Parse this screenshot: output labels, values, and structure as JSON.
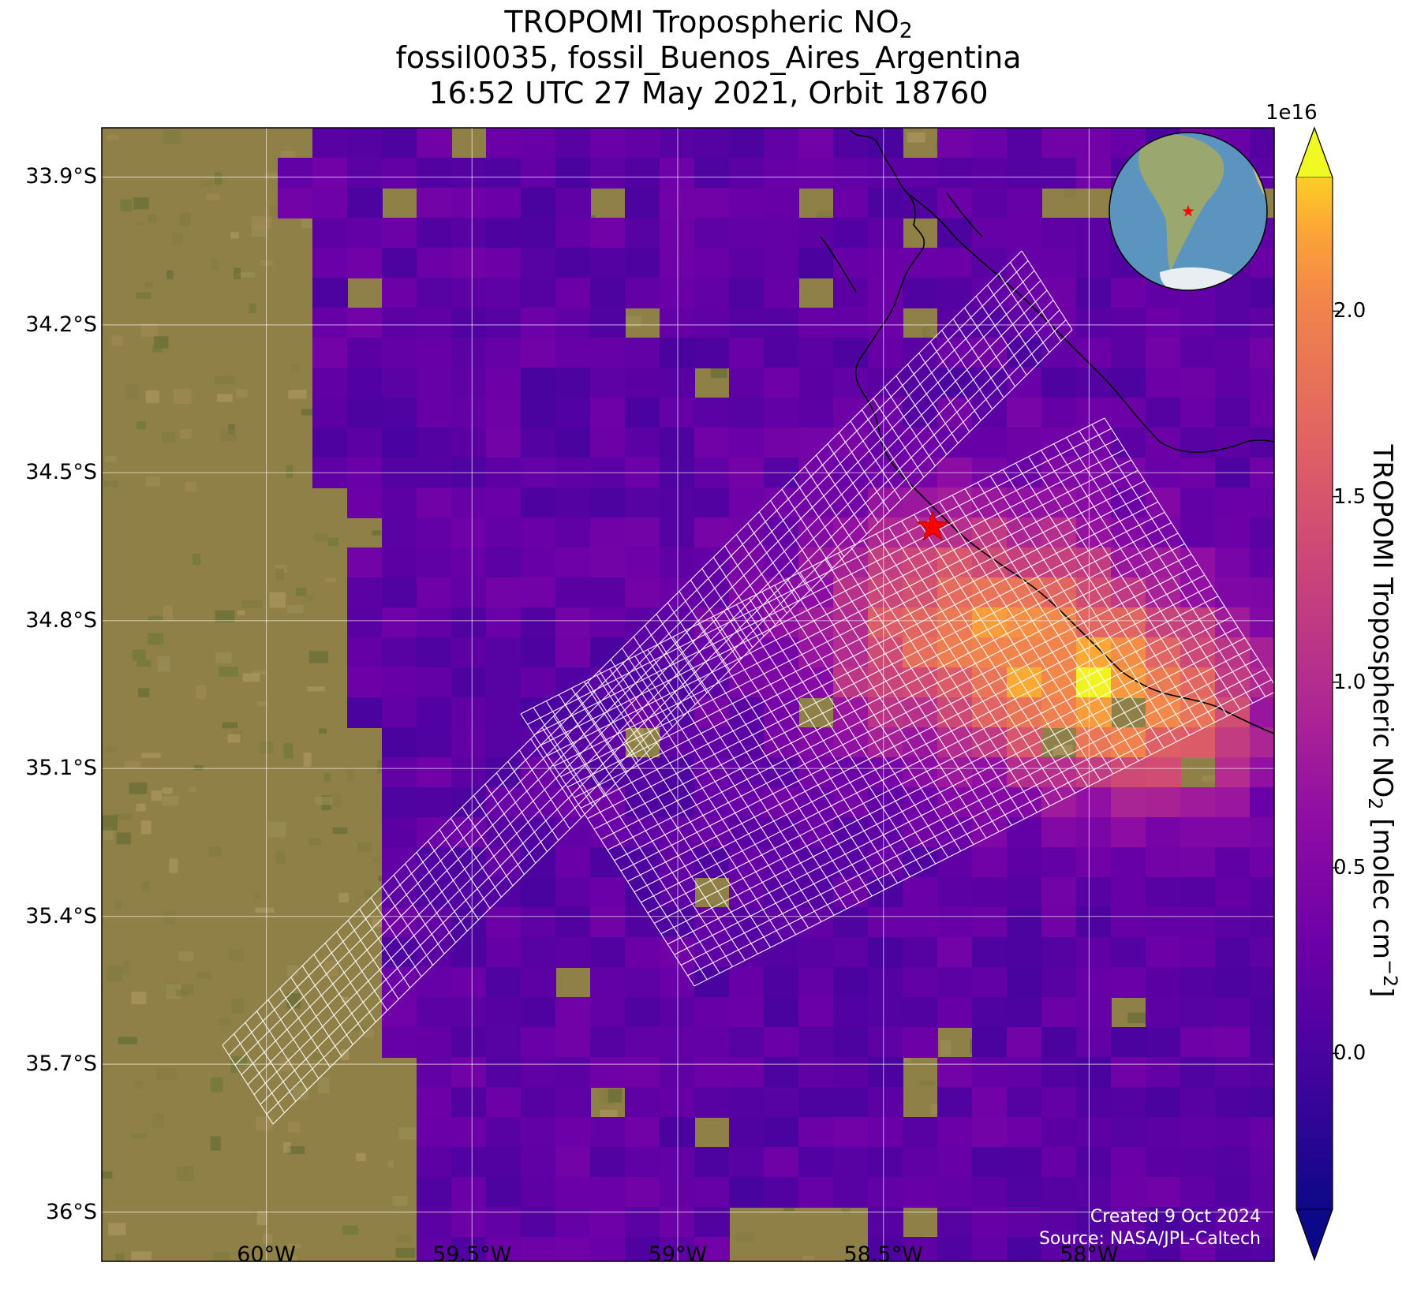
{
  "title": {
    "line1_prefix": "TROPOMI Tropospheric NO",
    "line1_sub": "2",
    "line2": "fossil0035, fossil_Buenos_Aires_Argentina",
    "line3": "16:52 UTC 27 May 2021, Orbit 18760"
  },
  "map": {
    "lat_ticks": [
      "33.9°S",
      "34.2°S",
      "34.5°S",
      "34.8°S",
      "35.1°S",
      "35.4°S",
      "35.7°S",
      "36°S"
    ],
    "lat_values": [
      -33.9,
      -34.2,
      -34.5,
      -34.8,
      -35.1,
      -35.4,
      -35.7,
      -36.0
    ],
    "lon_ticks": [
      "60°W",
      "59.5°W",
      "59°W",
      "58.5°W",
      "58°W"
    ],
    "lon_values": [
      -60.0,
      -59.5,
      -59.0,
      -58.5,
      -58.0
    ],
    "lon_range": [
      -60.4,
      -57.55
    ],
    "lat_range": [
      -36.1,
      -33.8
    ],
    "target": {
      "name": "fossil_Buenos_Aires_Argentina",
      "lon": -58.38,
      "lat": -34.61
    },
    "gridlines": true,
    "inset": "globe-locator",
    "target_marker_color": "#ff0000",
    "target_grid_color": "#ffffff"
  },
  "colorbar": {
    "label_prefix": "TROPOMI Tropospheric NO",
    "label_sub": "2",
    "label_mid": " [molec cm",
    "label_sup": "−2",
    "label_end": "]",
    "exponent": "1e16",
    "ticks": [
      "0.0",
      "0.5",
      "1.0",
      "1.5",
      "2.0"
    ],
    "tick_values": [
      0.0,
      0.5,
      1.0,
      1.5,
      2.0
    ],
    "range": [
      -0.42,
      2.36
    ],
    "colormap": "plasma",
    "extend": "both"
  },
  "credits": {
    "created": "Created 9 Oct 2024",
    "source": "Source: NASA/JPL-Caltech"
  }
}
